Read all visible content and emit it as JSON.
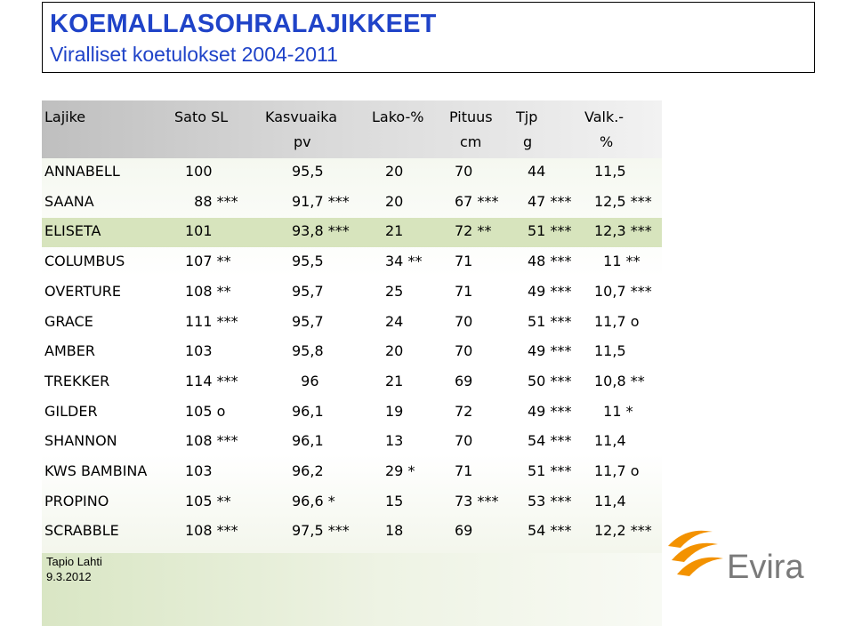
{
  "title": "KOEMALLASOHRALAJIKKEET",
  "subtitle": "Viralliset koetulokset 2004-2011",
  "headers": {
    "row1": [
      "Lajike",
      "Sato SL",
      "Kasvuaika",
      "Lako-%",
      "Pituus",
      "Tjp",
      "Valk.-"
    ],
    "row2": [
      "",
      "",
      "pv",
      "",
      "cm",
      "g",
      "%"
    ]
  },
  "rows": [
    [
      "ANNABELL",
      "100",
      "95,5",
      "20",
      "70",
      "44",
      "11,5"
    ],
    [
      "SAANA",
      "  88 ***",
      "91,7 ***",
      "20",
      "67 ***",
      "47 ***",
      "12,5 ***"
    ],
    [
      "ELISETA",
      "101",
      "93,8 ***",
      "21",
      "72 **",
      "51 ***",
      "12,3 ***"
    ],
    [
      "COLUMBUS",
      "107 **",
      "95,5",
      "34 **",
      "71",
      "48 ***",
      "  11 **"
    ],
    [
      "OVERTURE",
      "108 **",
      "95,7",
      "25",
      "71",
      "49 ***",
      "10,7 ***"
    ],
    [
      "GRACE",
      "111 ***",
      "95,7",
      "24",
      "70",
      "51 ***",
      "11,7 o"
    ],
    [
      "AMBER",
      "103",
      "95,8",
      "20",
      "70",
      "49 ***",
      "11,5"
    ],
    [
      "TREKKER",
      "114 ***",
      "  96",
      "21",
      "69",
      "50 ***",
      "10,8 **"
    ],
    [
      "GILDER",
      "105 o",
      "96,1",
      "19",
      "72",
      "49 ***",
      "  11 *"
    ],
    [
      "SHANNON",
      "108 ***",
      "96,1",
      "13",
      "70",
      "54 ***",
      "11,4"
    ],
    [
      "KWS BAMBINA",
      "103",
      "96,2",
      "29 *",
      "71",
      "51 ***",
      "11,7 o"
    ],
    [
      "PROPINO",
      "105 **",
      "96,6 *",
      "15",
      "73 ***",
      "53 ***",
      "11,4"
    ],
    [
      "SCRABBLE",
      "108 ***",
      "97,5 ***",
      "18",
      "69",
      "54 ***",
      "12,2 ***"
    ]
  ],
  "footer": {
    "author": "Tapio Lahti",
    "date": "9.3.2012"
  },
  "logo": {
    "text": "Evira"
  },
  "colors": {
    "title": "#1f43c8",
    "highlight_row": "#d7e4bd",
    "logo_orange": "#f39200",
    "logo_gray": "#7a7a7a"
  }
}
